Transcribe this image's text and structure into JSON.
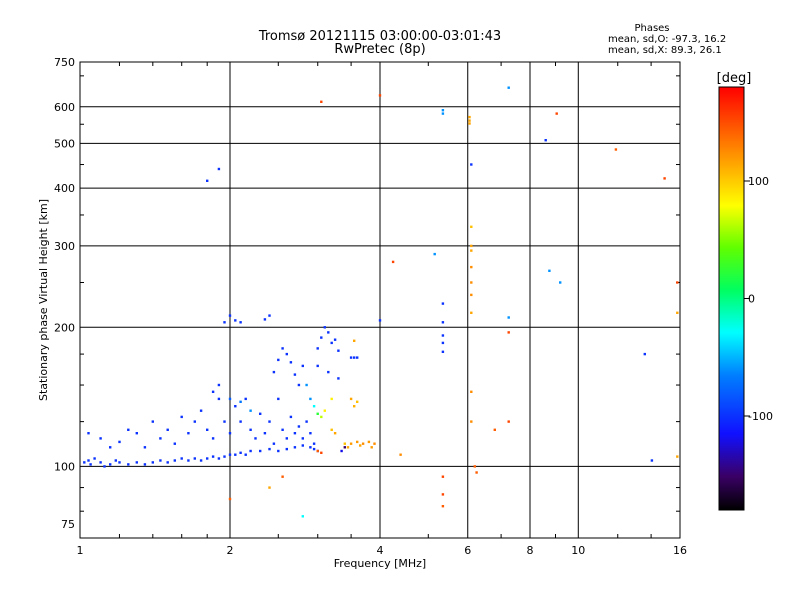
{
  "chart_data": {
    "type": "scatter",
    "title": "Tromsø 20121115 03:00:00-03:01:43",
    "subtitle": "RwPretec (8p)",
    "xlabel": "Frequency [MHz]",
    "ylabel": "Stationary phase Virtual Height [km]",
    "xscale": "log2",
    "yscale": "log",
    "xlim": [
      1,
      16
    ],
    "ylim": [
      70,
      750
    ],
    "x_ticks": [
      1,
      2,
      4,
      6,
      8,
      10,
      16
    ],
    "y_ticks": [
      75,
      100,
      200,
      300,
      400,
      500,
      600,
      750
    ],
    "grid": true,
    "phases": {
      "heading": "Phases",
      "line_o": "mean, sd,O: -97.3, 16.2",
      "line_x": "mean, sd,X: 89.3, 26.1"
    },
    "colorbar": {
      "label": "[deg]",
      "ticks": [
        100,
        0,
        -100
      ],
      "range": [
        -180,
        180
      ]
    },
    "points": [
      [
        1.02,
        102,
        -100
      ],
      [
        1.04,
        103,
        -100
      ],
      [
        1.05,
        101,
        -100
      ],
      [
        1.07,
        104,
        -100
      ],
      [
        1.1,
        102,
        -100
      ],
      [
        1.12,
        100,
        -100
      ],
      [
        1.15,
        101,
        -100
      ],
      [
        1.18,
        103,
        -100
      ],
      [
        1.2,
        102,
        -100
      ],
      [
        1.25,
        101,
        -100
      ],
      [
        1.3,
        102,
        -100
      ],
      [
        1.35,
        101,
        -100
      ],
      [
        1.4,
        102,
        -100
      ],
      [
        1.45,
        103,
        -100
      ],
      [
        1.5,
        102,
        -100
      ],
      [
        1.55,
        103,
        -100
      ],
      [
        1.6,
        104,
        -100
      ],
      [
        1.65,
        103,
        -100
      ],
      [
        1.7,
        104,
        -100
      ],
      [
        1.75,
        103,
        -100
      ],
      [
        1.8,
        104,
        -100
      ],
      [
        1.85,
        105,
        -100
      ],
      [
        1.9,
        104,
        -100
      ],
      [
        1.95,
        105,
        -100
      ],
      [
        2.0,
        106,
        -100
      ],
      [
        2.05,
        106,
        -100
      ],
      [
        2.1,
        107,
        -100
      ],
      [
        2.15,
        106,
        -100
      ],
      [
        2.2,
        108,
        -100
      ],
      [
        2.3,
        108,
        -100
      ],
      [
        2.4,
        109,
        -100
      ],
      [
        2.5,
        108,
        -100
      ],
      [
        2.6,
        109,
        -100
      ],
      [
        2.7,
        110,
        -100
      ],
      [
        2.8,
        111,
        -100
      ],
      [
        2.9,
        110,
        -100
      ],
      [
        2.95,
        109,
        -100
      ],
      [
        3.0,
        108,
        -100
      ],
      [
        1.04,
        118,
        -100
      ],
      [
        1.1,
        115,
        -100
      ],
      [
        1.15,
        110,
        -100
      ],
      [
        1.2,
        113,
        -100
      ],
      [
        1.25,
        120,
        -100
      ],
      [
        1.3,
        118,
        -100
      ],
      [
        1.35,
        110,
        -100
      ],
      [
        1.4,
        125,
        -100
      ],
      [
        1.45,
        115,
        -100
      ],
      [
        1.5,
        120,
        -100
      ],
      [
        1.55,
        112,
        -100
      ],
      [
        1.6,
        128,
        -100
      ],
      [
        1.65,
        118,
        -100
      ],
      [
        1.7,
        125,
        -100
      ],
      [
        1.75,
        132,
        -100
      ],
      [
        1.8,
        120,
        -100
      ],
      [
        1.85,
        115,
        -100
      ],
      [
        1.9,
        140,
        -100
      ],
      [
        1.95,
        125,
        -100
      ],
      [
        2.0,
        118,
        -100
      ],
      [
        2.05,
        135,
        -100
      ],
      [
        2.1,
        125,
        -100
      ],
      [
        2.15,
        140,
        -100
      ],
      [
        2.2,
        120,
        -100
      ],
      [
        2.25,
        115,
        -100
      ],
      [
        2.3,
        130,
        -100
      ],
      [
        2.35,
        118,
        -100
      ],
      [
        2.4,
        125,
        -100
      ],
      [
        2.45,
        112,
        -100
      ],
      [
        2.5,
        140,
        -100
      ],
      [
        2.55,
        120,
        -100
      ],
      [
        2.6,
        115,
        -100
      ],
      [
        2.65,
        128,
        -100
      ],
      [
        2.7,
        118,
        -100
      ],
      [
        2.75,
        122,
        -100
      ],
      [
        2.8,
        115,
        -100
      ],
      [
        2.85,
        125,
        -100
      ],
      [
        2.9,
        118,
        -100
      ],
      [
        2.95,
        112,
        -100
      ],
      [
        1.85,
        145,
        -100
      ],
      [
        1.9,
        150,
        -100
      ],
      [
        2.0,
        140,
        -80
      ],
      [
        2.1,
        138,
        -70
      ],
      [
        2.2,
        132,
        -60
      ],
      [
        2.45,
        160,
        -100
      ],
      [
        2.5,
        170,
        -100
      ],
      [
        2.55,
        180,
        -100
      ],
      [
        2.6,
        175,
        -100
      ],
      [
        2.65,
        168,
        -100
      ],
      [
        2.7,
        158,
        -100
      ],
      [
        2.75,
        150,
        -100
      ],
      [
        2.8,
        165,
        -100
      ],
      [
        2.85,
        150,
        -60
      ],
      [
        1.95,
        205,
        -100
      ],
      [
        2.0,
        212,
        -100
      ],
      [
        2.05,
        207,
        -100
      ],
      [
        2.1,
        205,
        -100
      ],
      [
        2.35,
        208,
        -100
      ],
      [
        2.4,
        212,
        -100
      ],
      [
        3.0,
        180,
        -100
      ],
      [
        3.05,
        190,
        -100
      ],
      [
        3.1,
        200,
        -100
      ],
      [
        3.15,
        195,
        -100
      ],
      [
        3.2,
        185,
        -100
      ],
      [
        3.25,
        188,
        -100
      ],
      [
        3.3,
        178,
        -100
      ],
      [
        3.0,
        165,
        -100
      ],
      [
        3.15,
        160,
        -100
      ],
      [
        3.3,
        155,
        -100
      ],
      [
        3.5,
        172,
        -100
      ],
      [
        3.55,
        172,
        -100
      ],
      [
        3.6,
        172,
        -100
      ],
      [
        2.9,
        140,
        -60
      ],
      [
        2.95,
        135,
        -30
      ],
      [
        3.0,
        130,
        20
      ],
      [
        3.05,
        128,
        60
      ],
      [
        3.1,
        132,
        80
      ],
      [
        3.2,
        120,
        100
      ],
      [
        3.25,
        118,
        110
      ],
      [
        3.4,
        112,
        100
      ],
      [
        3.45,
        110,
        110
      ],
      [
        3.5,
        112,
        115
      ],
      [
        3.6,
        113,
        115
      ],
      [
        3.65,
        111,
        110
      ],
      [
        3.7,
        112,
        120
      ],
      [
        3.8,
        113,
        115
      ],
      [
        3.85,
        110,
        115
      ],
      [
        3.9,
        112,
        120
      ],
      [
        3.5,
        140,
        110
      ],
      [
        3.55,
        135,
        105
      ],
      [
        3.6,
        138,
        100
      ],
      [
        3.0,
        108,
        140
      ],
      [
        3.05,
        107,
        150
      ],
      [
        3.4,
        110,
        -150
      ],
      [
        3.35,
        108,
        -120
      ],
      [
        3.55,
        187,
        110
      ],
      [
        4.4,
        106,
        120
      ],
      [
        3.2,
        140,
        80
      ],
      [
        1.8,
        415,
        -100
      ],
      [
        1.9,
        440,
        -100
      ],
      [
        2.8,
        78,
        -30
      ],
      [
        2.55,
        95,
        140
      ],
      [
        2.4,
        90,
        110
      ],
      [
        2.0,
        85,
        140
      ],
      [
        3.05,
        615,
        150
      ],
      [
        4.0,
        635,
        150
      ],
      [
        5.35,
        590,
        -60
      ],
      [
        5.35,
        580,
        -60
      ],
      [
        6.05,
        570,
        110
      ],
      [
        6.05,
        560,
        110
      ],
      [
        6.05,
        552,
        110
      ],
      [
        7.25,
        660,
        -60
      ],
      [
        8.6,
        508,
        -100
      ],
      [
        9.05,
        580,
        150
      ],
      [
        11.9,
        485,
        140
      ],
      [
        14.9,
        420,
        150
      ],
      [
        6.1,
        450,
        -100
      ],
      [
        6.1,
        330,
        100
      ],
      [
        6.1,
        300,
        110
      ],
      [
        6.1,
        293,
        110
      ],
      [
        6.1,
        270,
        120
      ],
      [
        6.1,
        250,
        120
      ],
      [
        6.1,
        235,
        120
      ],
      [
        6.1,
        215,
        110
      ],
      [
        4.25,
        277,
        150
      ],
      [
        5.15,
        288,
        -60
      ],
      [
        5.35,
        225,
        -100
      ],
      [
        5.35,
        205,
        -100
      ],
      [
        5.35,
        192,
        -100
      ],
      [
        5.35,
        185,
        -100
      ],
      [
        5.35,
        177,
        -100
      ],
      [
        4.0,
        207,
        -100
      ],
      [
        7.25,
        210,
        -60
      ],
      [
        7.25,
        195,
        150
      ],
      [
        8.75,
        265,
        -60
      ],
      [
        9.2,
        250,
        -60
      ],
      [
        13.6,
        175,
        -100
      ],
      [
        15.8,
        250,
        150
      ],
      [
        15.8,
        215,
        110
      ],
      [
        6.1,
        145,
        120
      ],
      [
        6.1,
        125,
        120
      ],
      [
        7.25,
        125,
        150
      ],
      [
        6.8,
        120,
        140
      ],
      [
        6.2,
        100,
        140
      ],
      [
        6.25,
        97,
        140
      ],
      [
        5.35,
        95,
        150
      ],
      [
        5.35,
        87,
        150
      ],
      [
        5.35,
        82,
        140
      ],
      [
        14.05,
        103,
        -100
      ],
      [
        15.8,
        105,
        110
      ]
    ]
  }
}
